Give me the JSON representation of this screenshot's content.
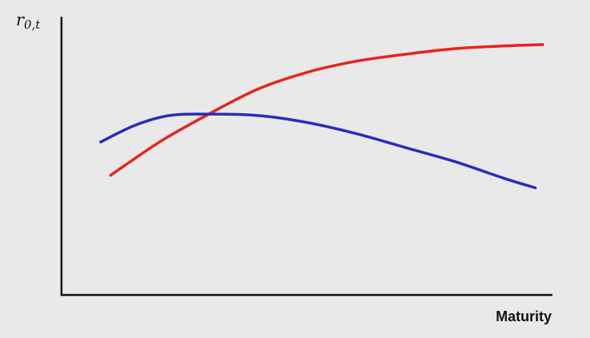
{
  "chart_data": {
    "type": "line",
    "title": "",
    "ylabel": {
      "base": "r",
      "subscript": "0,t"
    },
    "xlabel": "Maturity",
    "xlim": [
      0,
      100
    ],
    "ylim": [
      0,
      100
    ],
    "grid": false,
    "legend": "none",
    "series": [
      {
        "color": "#e8231b",
        "x": [
          10,
          20,
          30,
          40,
          50,
          60,
          70,
          80,
          90,
          98
        ],
        "y": [
          43,
          55,
          65,
          74,
          80,
          84,
          86.5,
          88.5,
          89.5,
          90
        ]
      },
      {
        "color": "#2b2bbf",
        "x": [
          8,
          15,
          22,
          30,
          40,
          50,
          60,
          70,
          80,
          90,
          96.5
        ],
        "y": [
          55,
          61,
          64.5,
          65,
          64.5,
          62,
          58,
          53,
          48,
          42,
          38.5
        ]
      }
    ]
  }
}
